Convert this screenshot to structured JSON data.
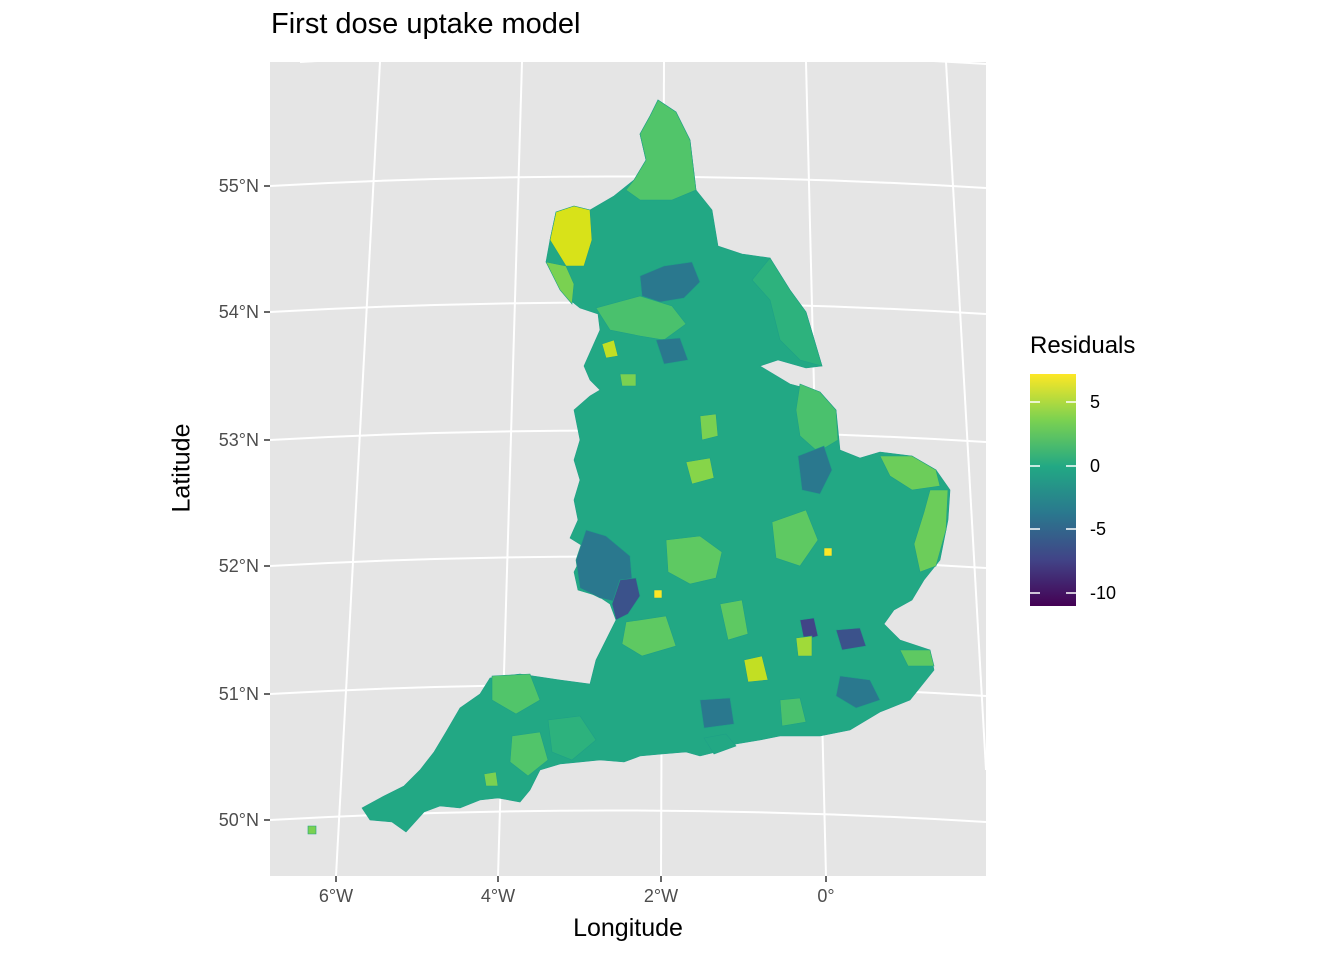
{
  "title": "First dose uptake model",
  "xlabel": "Longitude",
  "ylabel": "Latitude",
  "y_ticks": [
    "55°N",
    "54°N",
    "53°N",
    "52°N",
    "51°N",
    "50°N"
  ],
  "x_ticks": [
    "6°W",
    "4°W",
    "2°W",
    "0°"
  ],
  "legend": {
    "title": "Residuals",
    "labels": [
      "5",
      "0",
      "-5",
      "-10"
    ],
    "colors": [
      "#fde725",
      "#7ad151",
      "#22a884",
      "#2a788e",
      "#414487",
      "#440154"
    ]
  },
  "colors": {
    "panel": "#e5e5e5",
    "grid": "#ffffff",
    "region_default": "#22a884",
    "region_high": "#7ad151",
    "region_max": "#fde725",
    "region_low": "#2a788e",
    "region_min": "#414487"
  }
}
